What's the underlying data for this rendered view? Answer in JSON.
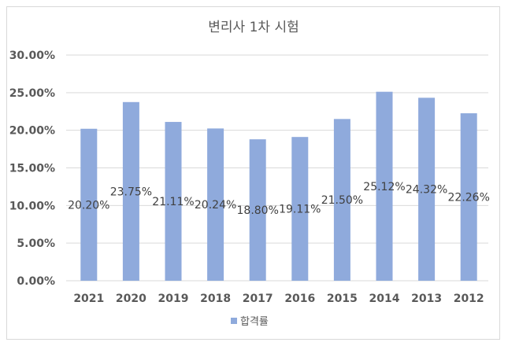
{
  "chart_data": {
    "type": "bar",
    "title": "변리사 1차 시험",
    "xlabel": "",
    "ylabel": "",
    "categories": [
      "2021",
      "2020",
      "2019",
      "2018",
      "2017",
      "2016",
      "2015",
      "2014",
      "2013",
      "2012"
    ],
    "series": [
      {
        "name": "합격률",
        "values": [
          20.2,
          23.75,
          21.11,
          20.24,
          18.8,
          19.11,
          21.5,
          25.12,
          24.32,
          22.26
        ],
        "labels": [
          "20.20%",
          "23.75%",
          "21.11%",
          "20.24%",
          "18.80%",
          "19.11%",
          "21.50%",
          "25.12%",
          "24.32%",
          "22.26%"
        ],
        "color": "#8faadc"
      }
    ],
    "ylim": [
      0,
      30
    ],
    "yticks": [
      0,
      5,
      10,
      15,
      20,
      25,
      30
    ],
    "ytick_labels": [
      "0.00%",
      "5.00%",
      "10.00%",
      "15.00%",
      "20.00%",
      "25.00%",
      "30.00%"
    ],
    "grid": true,
    "gridline_color": "#d9d9d9",
    "legend": "bottom"
  }
}
